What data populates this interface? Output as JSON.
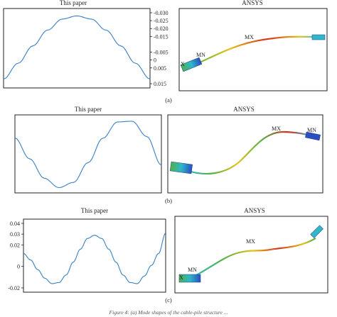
{
  "caption": "Figure 4: (a) Mode shapes of the cable-pile structure ...",
  "panels": [
    {
      "label": "(a)",
      "ansys_title": "ANSYS",
      "ansys_labels": {
        "mn": "MN",
        "mx": "MX",
        "x": "X"
      }
    },
    {
      "label": "(b)",
      "ansys_title": "ANSYS",
      "ansys_labels": {
        "mn": "MN",
        "mx": "MX"
      }
    },
    {
      "label": "(c)",
      "ansys_title": "ANSYS",
      "ansys_labels": {
        "mn": "MN",
        "mx": "MX",
        "x": "X"
      }
    }
  ],
  "chart_data": [
    {
      "type": "line",
      "title": "This paper",
      "ylim": [
        0.015,
        -0.03
      ],
      "y_inverted": true,
      "y_axis_side": "right",
      "y_ticks": [
        -0.03,
        -0.025,
        -0.02,
        -0.015,
        -0.005,
        0,
        0.005,
        0.015
      ],
      "y_tick_labels": [
        "-0.030",
        "-0.025",
        "-0.020",
        "-0.015",
        "-0.005",
        "0",
        "0.005",
        "0.015"
      ],
      "xlim": [
        0,
        1
      ],
      "x": [
        0,
        0.1,
        0.2,
        0.3,
        0.4,
        0.5,
        0.6,
        0.7,
        0.8,
        0.9,
        1.0
      ],
      "y": [
        0.012,
        0.002,
        -0.009,
        -0.019,
        -0.026,
        -0.028,
        -0.026,
        -0.019,
        -0.009,
        0.002,
        0.012
      ],
      "series_color": "#3a7fc4"
    },
    {
      "type": "line",
      "title": "This paper",
      "ylim": [
        -1,
        1
      ],
      "xlim": [
        0,
        1
      ],
      "x": [
        0,
        0.1,
        0.2,
        0.3,
        0.4,
        0.5,
        0.6,
        0.7,
        0.8,
        0.9,
        1.0
      ],
      "y": [
        0.46,
        -0.14,
        -0.7,
        -0.97,
        -0.82,
        -0.25,
        0.45,
        0.92,
        0.94,
        0.5,
        -0.32
      ],
      "series_color": "#3a7fc4"
    },
    {
      "type": "line",
      "title": "This paper",
      "ylim": [
        -0.02,
        0.04
      ],
      "y_ticks": [
        0.04,
        0.03,
        0.02,
        0,
        -0.02
      ],
      "y_tick_labels": [
        "0.04",
        "0.03",
        "0.02",
        "0",
        "-0.02"
      ],
      "xlim": [
        0,
        1
      ],
      "x": [
        0,
        0.05,
        0.1,
        0.15,
        0.2,
        0.25,
        0.3,
        0.35,
        0.4,
        0.45,
        0.5,
        0.55,
        0.6,
        0.65,
        0.7,
        0.75,
        0.8,
        0.85,
        0.9,
        0.95,
        1.0
      ],
      "y": [
        0.012,
        0.006,
        -0.003,
        -0.011,
        -0.016,
        -0.015,
        -0.008,
        0.004,
        0.016,
        0.026,
        0.029,
        0.026,
        0.016,
        0.004,
        -0.008,
        -0.015,
        -0.016,
        -0.009,
        0.001,
        0.012,
        0.031
      ],
      "series_color": "#3a7fc4"
    }
  ],
  "colors": {
    "line": "#3a7fc4",
    "frame": "#231f20",
    "cable_red": "#d7301f",
    "cable_yellow": "#e6c21a",
    "cable_green": "#4fb24a",
    "cable_cyan": "#2fb8c9",
    "cable_blue": "#2b4fbf"
  }
}
